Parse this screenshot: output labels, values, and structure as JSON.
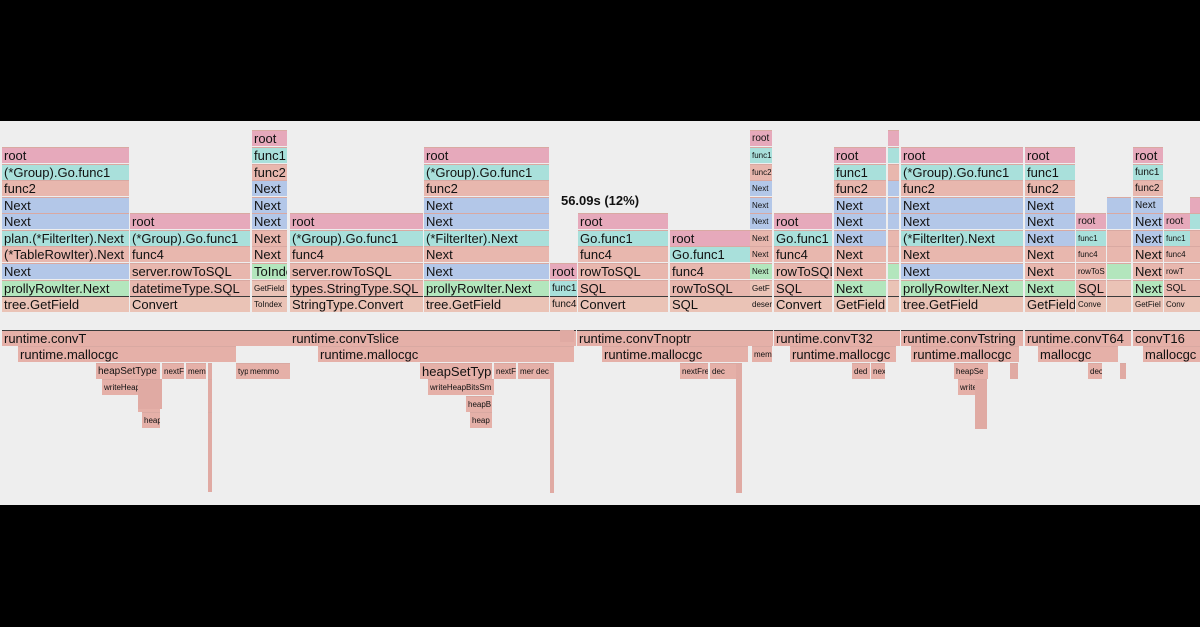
{
  "summary": {
    "total_label": "56.09s (12%)"
  },
  "colors": {
    "background": "#eeeeee",
    "frame": "#000000",
    "root": "#e6a9bb",
    "group_func": "#a9e0db",
    "func": "#e8b7ae",
    "next": "#b3c7e8",
    "iter": "#b3e6bd",
    "field": "#eac3b6",
    "runtime": "#e5b0a8"
  },
  "stack_frames": [
    "root",
    "func1",
    "func2",
    "Next",
    "Next",
    "Next",
    "Next",
    "Next",
    "ToIndex",
    "root",
    "(*Group).Go.func1",
    "func2",
    "Next",
    "Next",
    "plan.(*FilterIter).Next",
    "(*TableRowIter).Next",
    "Next",
    "prollyRowIter.Next",
    "tree.GetField",
    "root",
    "(*Group).Go.func1",
    "func4",
    "server.rowToSQL",
    "datetimeType.SQL",
    "Convert",
    "GetField",
    "(*Group).Go.func1",
    "func4",
    "server.rowToSQL",
    "types.StringType.SQL",
    "StringType.Convert",
    "(*FilterIter).Next",
    "Next",
    "prollyRowIter.Next",
    "func1",
    "func4",
    "Go.func1",
    "rowToSQL",
    "SQL",
    "Convert",
    "func2",
    "Next",
    "deser",
    "GetF",
    "rowToSQL",
    "func4",
    "GetField",
    "Convert",
    "rowToS",
    "Conve",
    "GetFiel",
    "Conv",
    "rowT"
  ],
  "runtime_frames": [
    "runtime.convT",
    "runtime.mallocgc",
    "heapSetType",
    "nextF",
    "mem",
    "typedmemmo",
    "writeHeapBitsS",
    "heap",
    "heap",
    "memmo",
    "runtime.convTslice",
    "runtime.mallocgc",
    "heapSetType",
    "nextF",
    "mem",
    "dec",
    "writeHeapBitsSm",
    "heapB",
    "heap",
    "runtime.convTnoptr",
    "runtime.mallocgc",
    "nextFre",
    "dec",
    "mem",
    "runtime.convT32",
    "runtime.mallocgc",
    "ded",
    "nex",
    "runtime.convTstring",
    "runtime.mallocgc",
    "heapSe",
    "writeH",
    "runtime.convT64",
    "mallocgc",
    "dec",
    "convT16",
    "mallocgc"
  ]
}
